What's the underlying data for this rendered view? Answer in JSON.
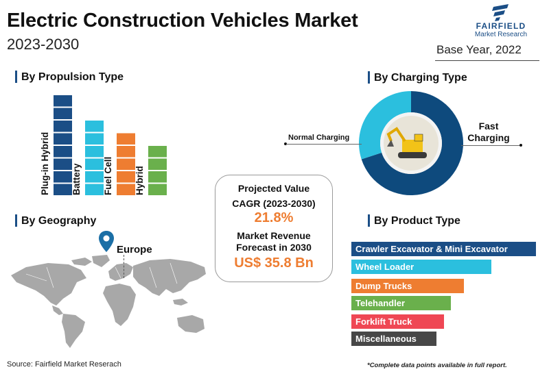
{
  "header": {
    "title": "Electric Construction Vehicles Market",
    "subtitle": "2023-2030",
    "logo_name": "FAIRFIELD",
    "logo_sub": "Market Research",
    "base_year": "Base Year, 2022"
  },
  "sections": {
    "propulsion": "By Propulsion Type",
    "charging": "By Charging Type",
    "geography": "By Geography",
    "product": "By Product Type"
  },
  "geography": {
    "highlight": "Europe",
    "marker_color": "#1b6fa6"
  },
  "center": {
    "projected_value": "Projected Value",
    "cagr_label": "CAGR (2023-2030)",
    "cagr_value": "21.8%",
    "forecast_label_1": "Market Revenue",
    "forecast_label_2": "Forecast in 2030",
    "forecast_value": "US$ 35.8 Bn"
  },
  "charging_labels": {
    "left": "Normal Charging",
    "right_1": "Fast",
    "right_2": "Charging"
  },
  "footer": {
    "source": "Source: Fairfield Market Reserach",
    "note": "*Complete data points available in full report."
  },
  "chart_data": [
    {
      "type": "bar",
      "title": "By Propulsion Type",
      "categories": [
        "Plug-in Hybrid",
        "Battery",
        "Fuel Cell",
        "Hybrid"
      ],
      "values": [
        8,
        6,
        5,
        4
      ],
      "colors": [
        "#1b4e86",
        "#2bbfde",
        "#ee7d31",
        "#6ab04c"
      ]
    },
    {
      "type": "pie",
      "title": "By Charging Type",
      "categories": [
        "Fast Charging",
        "Normal Charging"
      ],
      "values": [
        70,
        30
      ],
      "colors": [
        "#0e4a7d",
        "#2bbfde"
      ]
    },
    {
      "type": "bar",
      "title": "By Product Type",
      "orientation": "horizontal",
      "categories": [
        "Crawler Excavator & Mini Excavator",
        "Wheel Loader",
        "Dump Trucks",
        "Telehandler",
        "Forklift Truck",
        "Miscellaneous"
      ],
      "values": [
        100,
        76,
        61,
        54,
        50,
        46
      ],
      "colors": [
        "#1b4e86",
        "#2bbfde",
        "#ee7d31",
        "#6ab04c",
        "#ef4754",
        "#474747"
      ]
    }
  ]
}
